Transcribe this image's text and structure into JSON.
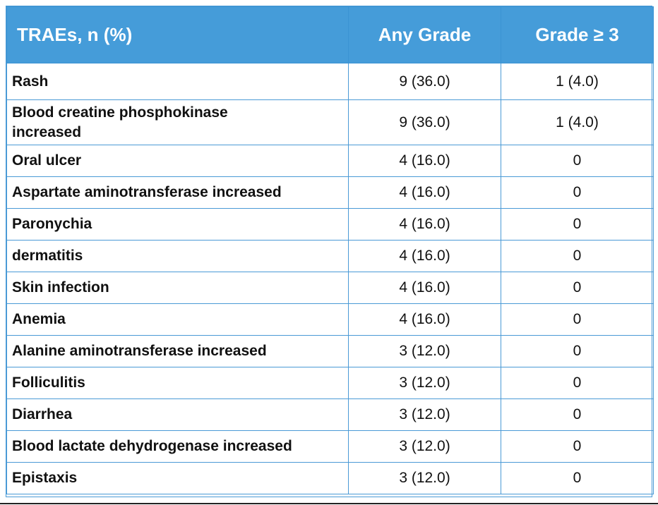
{
  "table": {
    "headers": [
      "TRAEs, n (%)",
      "Any Grade",
      "Grade ≥ 3"
    ],
    "rows": [
      {
        "event": "Rash",
        "any_grade": "9 (36.0)",
        "grade3": "1 (4.0)"
      },
      {
        "event": "Blood creatine phosphokinase increased",
        "any_grade": "9 (36.0)",
        "grade3": "1 (4.0)"
      },
      {
        "event": "Oral ulcer",
        "any_grade": "4 (16.0)",
        "grade3": "0"
      },
      {
        "event": "Aspartate aminotransferase increased",
        "any_grade": "4 (16.0)",
        "grade3": "0"
      },
      {
        "event": "Paronychia",
        "any_grade": "4 (16.0)",
        "grade3": "0"
      },
      {
        "event": "dermatitis",
        "any_grade": "4 (16.0)",
        "grade3": "0"
      },
      {
        "event": "Skin infection",
        "any_grade": "4 (16.0)",
        "grade3": "0"
      },
      {
        "event": "Anemia",
        "any_grade": "4 (16.0)",
        "grade3": "0"
      },
      {
        "event": "Alanine aminotransferase increased",
        "any_grade": "3 (12.0)",
        "grade3": "0"
      },
      {
        "event": "Folliculitis",
        "any_grade": "3 (12.0)",
        "grade3": "0"
      },
      {
        "event": "Diarrhea",
        "any_grade": "3 (12.0)",
        "grade3": "0"
      },
      {
        "event": "Blood lactate dehydrogenase increased",
        "any_grade": "3 (12.0)",
        "grade3": "0"
      },
      {
        "event": "Epistaxis",
        "any_grade": "3 (12.0)",
        "grade3": "0"
      }
    ]
  },
  "colors": {
    "header_bg": "#459cd9",
    "header_text": "#ffffff",
    "border": "#4a9ad6"
  }
}
